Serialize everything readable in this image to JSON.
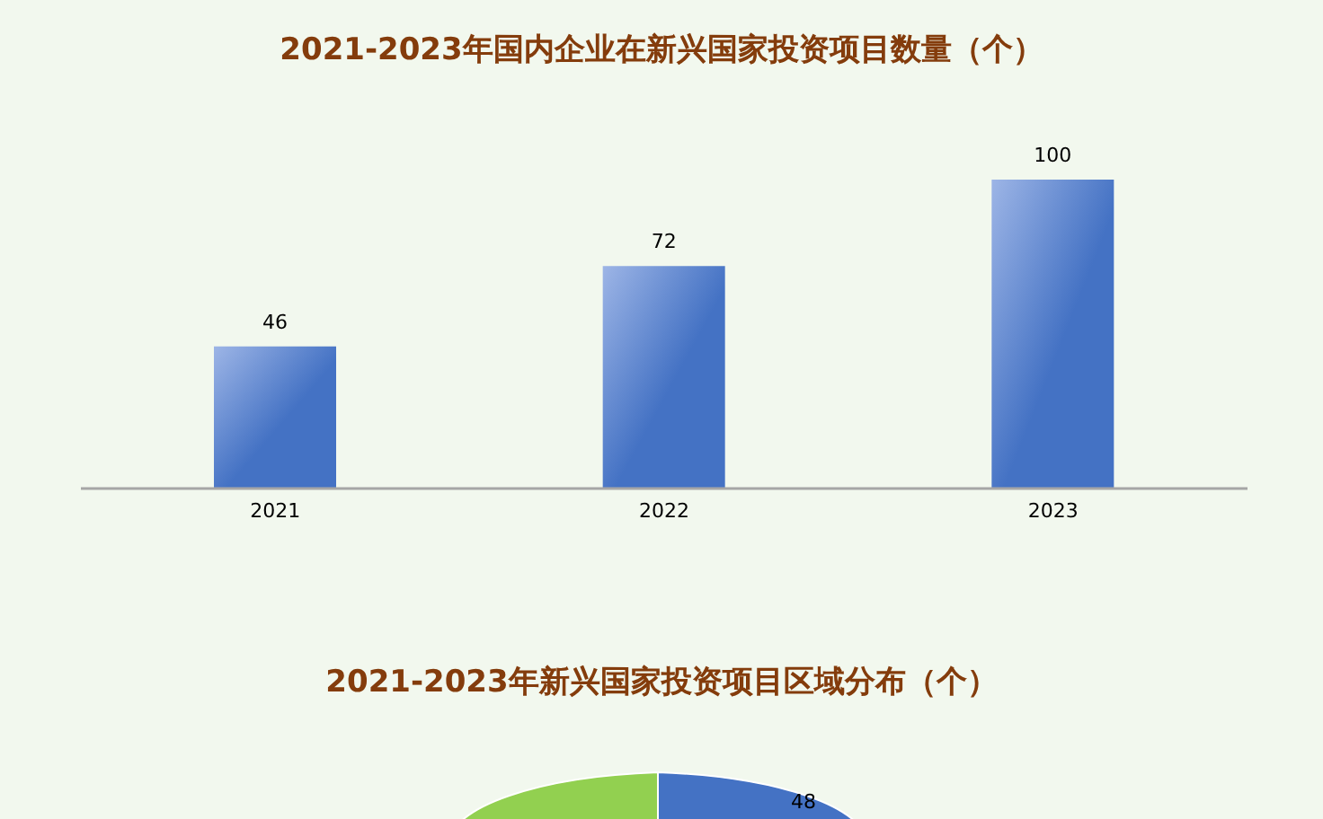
{
  "chart_data": [
    {
      "type": "bar",
      "title": "2021-2023年国内企业在新兴国家投资项目数量（个）",
      "categories": [
        "2021",
        "2022",
        "2023"
      ],
      "values": [
        46,
        72,
        100
      ],
      "color": "#4472c4",
      "ylim": [
        0,
        100
      ],
      "data_labels": true,
      "grid": false,
      "legend": false,
      "tick_labels": "x"
    },
    {
      "type": "other",
      "title": "2021-2023年新兴国家投资项目区域分布（个）",
      "annotations": [
        "48"
      ]
    }
  ]
}
